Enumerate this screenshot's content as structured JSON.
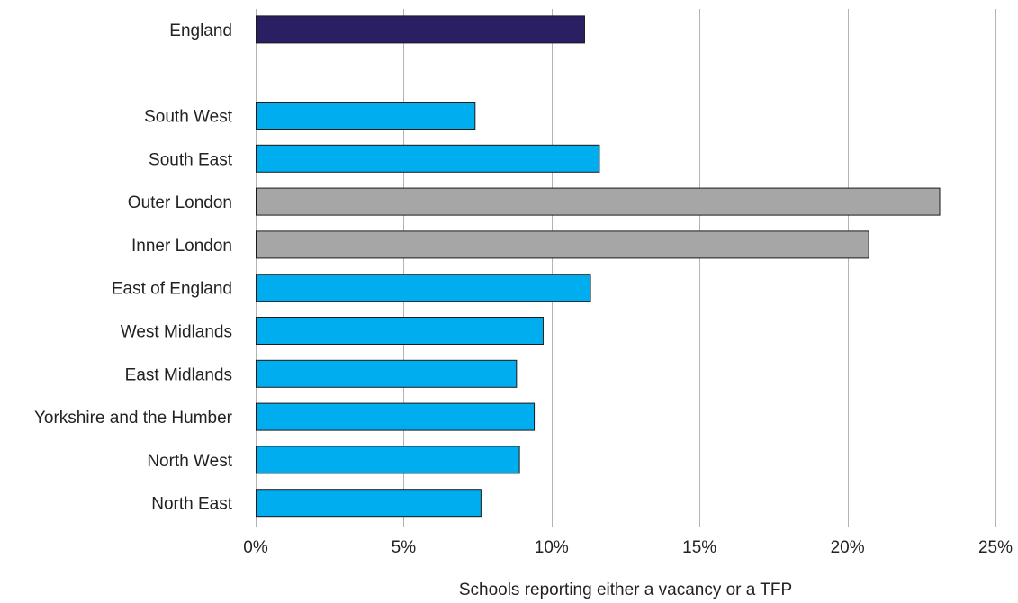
{
  "chart_data": {
    "type": "bar",
    "orientation": "horizontal",
    "categories": [
      "England",
      "",
      "South West",
      "South East",
      "Outer London",
      "Inner London",
      "East of England",
      "West Midlands",
      "East Midlands",
      "Yorkshire and the Humber",
      "North West",
      "North East"
    ],
    "values": [
      11.1,
      null,
      7.4,
      11.6,
      23.1,
      20.7,
      11.3,
      9.7,
      8.8,
      9.4,
      8.9,
      7.6
    ],
    "bar_colors": [
      "#2b1f63",
      null,
      "#00adef",
      "#00adef",
      "#a6a6a6",
      "#a6a6a6",
      "#00adef",
      "#00adef",
      "#00adef",
      "#00adef",
      "#00adef",
      "#00adef"
    ],
    "xlim": [
      0,
      25
    ],
    "x_ticks": [
      0,
      5,
      10,
      15,
      20,
      25
    ],
    "x_tick_labels": [
      "0%",
      "5%",
      "10%",
      "15%",
      "20%",
      "25%"
    ],
    "xlabel": "Schools reporting either a vacancy or a TFP",
    "ylabel": "",
    "title": "",
    "grid": "vertical",
    "legend": "none"
  }
}
